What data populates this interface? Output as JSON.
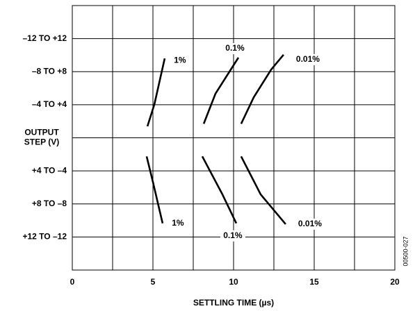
{
  "chart_data": {
    "type": "line",
    "x_label": "SETTLING TIME (µs)",
    "figure_id": "00500-027",
    "xlim": [
      0,
      20
    ],
    "xticks": [
      0,
      5,
      10,
      15,
      20
    ],
    "x_grid": [
      0,
      2.5,
      5,
      7.5,
      10,
      12.5,
      15,
      17.5,
      20
    ],
    "ylim": [
      -32,
      32
    ],
    "yticks": [
      {
        "value": 24,
        "label": "–12 TO +12"
      },
      {
        "value": 16,
        "label": "–8 TO +8"
      },
      {
        "value": 8,
        "label": "–4 TO +4"
      },
      {
        "value": 0,
        "label": "OUTPUT\nSTEP (V)"
      },
      {
        "value": -8,
        "label": "+4 TO –4"
      },
      {
        "value": -16,
        "label": "+8 TO –8"
      },
      {
        "value": -24,
        "label": "+12 TO –12"
      }
    ],
    "grid": true,
    "color": "#000000",
    "series": [
      {
        "name": "1%",
        "x": [
          4.66,
          5.09,
          5.73
        ],
        "values": [
          2.8,
          8.1,
          19.2
        ]
      },
      {
        "name": "0.1%",
        "x": [
          8.15,
          8.88,
          10.3
        ],
        "values": [
          3.4,
          10.7,
          19.4
        ]
      },
      {
        "name": "0.01%",
        "x": [
          10.47,
          11.25,
          12.33,
          13.1
        ],
        "values": [
          3.4,
          9.8,
          16.5,
          20.1
        ]
      },
      {
        "name": "1%",
        "x": [
          4.61,
          5.0,
          5.6
        ],
        "values": [
          -4.5,
          -10.7,
          -20.7
        ]
      },
      {
        "name": "0.1%",
        "x": [
          8.06,
          9.31,
          10.17
        ],
        "values": [
          -4.5,
          -13.7,
          -20.7
        ]
      },
      {
        "name": "0.01%",
        "x": [
          10.47,
          11.68,
          13.23
        ],
        "values": [
          -4.5,
          -13.7,
          -20.9
        ]
      }
    ]
  }
}
